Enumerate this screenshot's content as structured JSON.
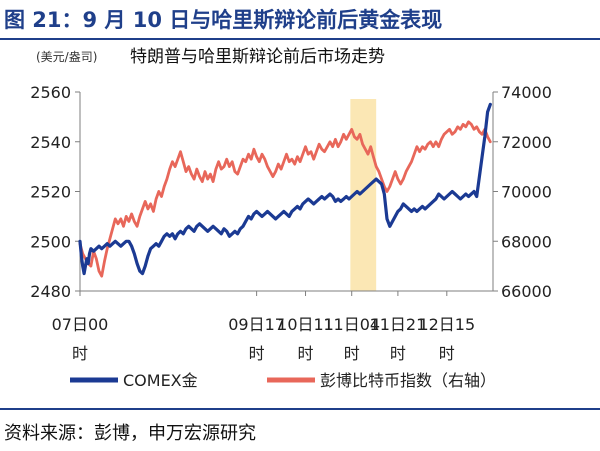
{
  "header": {
    "title": "图 21：9 月 10 日与哈里斯辩论前后黄金表现"
  },
  "source": {
    "text": "资料来源：彭博，申万宏源研究"
  },
  "colors": {
    "gold": "#1b3a93",
    "bitcoin": "#e8675a",
    "highlight": "#fbe7b4",
    "axis": "#7f7f7f",
    "heading": "#1f3f8a"
  },
  "chart_data": {
    "type": "line",
    "title": "特朗普与哈里斯辩论前后市场走势",
    "unit_label": "(美元/盎司)",
    "x_ticks": [
      {
        "label": "07日00",
        "label2": "时",
        "t": 0
      },
      {
        "label": "09日17",
        "label2": "时",
        "t": 65
      },
      {
        "label": "10日11",
        "label2": "时",
        "t": 83
      },
      {
        "label": "11日04",
        "label2": "时",
        "t": 100
      },
      {
        "label": "11日21",
        "label2": "时",
        "t": 117
      },
      {
        "label": "12日15",
        "label2": "时",
        "t": 135
      }
    ],
    "x_range": [
      0,
      152
    ],
    "highlight_range": [
      99.5,
      109
    ],
    "y_left": {
      "min": 2480,
      "max": 2560,
      "ticks": [
        2480,
        2500,
        2520,
        2540,
        2560
      ]
    },
    "y_right": {
      "min": 66000,
      "max": 74000,
      "ticks": [
        66000,
        68000,
        70000,
        72000,
        74000
      ]
    },
    "series": [
      {
        "name": "COMEX金",
        "axis": "left",
        "x": [
          0,
          0.5,
          1,
          1.5,
          2,
          2.5,
          3,
          3.5,
          4,
          5,
          6,
          7,
          8,
          9,
          10,
          11,
          12,
          13,
          14,
          15,
          16,
          17,
          18,
          19,
          20,
          21,
          22,
          23,
          24,
          25,
          26,
          27,
          28,
          29,
          30,
          31,
          32,
          33,
          34,
          35,
          36,
          37,
          38,
          39,
          40,
          41,
          42,
          43,
          44,
          45,
          46,
          47,
          48,
          49,
          50,
          51,
          52,
          53,
          54,
          55,
          56,
          57,
          58,
          59,
          60,
          61,
          62,
          63,
          64,
          65,
          66,
          67,
          68,
          69,
          70,
          71,
          72,
          73,
          74,
          75,
          76,
          77,
          78,
          79,
          80,
          81,
          82,
          83,
          84,
          85,
          86,
          87,
          88,
          89,
          90,
          91,
          92,
          93,
          94,
          95,
          96,
          97,
          98,
          99,
          100,
          101,
          102,
          103,
          104,
          105,
          106,
          107,
          108,
          109,
          110,
          111,
          112,
          113,
          114,
          115,
          116,
          117,
          118,
          119,
          120,
          121,
          122,
          123,
          124,
          125,
          126,
          127,
          128,
          129,
          130,
          131,
          132,
          133,
          134,
          135,
          136,
          137,
          138,
          139,
          140,
          141,
          142,
          143,
          144,
          145,
          146,
          147,
          148,
          149,
          150,
          151
        ],
        "values": [
          2500,
          2494,
          2490,
          2487,
          2490,
          2493,
          2491,
          2495,
          2497,
          2496,
          2497,
          2498,
          2497,
          2498,
          2499,
          2498,
          2499,
          2500,
          2499,
          2498,
          2499,
          2500,
          2500,
          2498,
          2495,
          2491,
          2488,
          2487,
          2490,
          2494,
          2497,
          2498,
          2499,
          2498,
          2500,
          2502,
          2503,
          2502,
          2503,
          2501,
          2503,
          2504,
          2503,
          2505,
          2506,
          2505,
          2504,
          2506,
          2507,
          2506,
          2505,
          2504,
          2505,
          2506,
          2505,
          2504,
          2503,
          2505,
          2504,
          2502,
          2503,
          2504,
          2503,
          2505,
          2506,
          2508,
          2510,
          2509,
          2511,
          2512,
          2511,
          2510,
          2511,
          2512,
          2511,
          2510,
          2509,
          2510,
          2511,
          2512,
          2511,
          2510,
          2512,
          2513,
          2514,
          2513,
          2515,
          2516,
          2517,
          2516,
          2515,
          2516,
          2517,
          2518,
          2517,
          2518,
          2519,
          2518,
          2516,
          2517,
          2516,
          2517,
          2518,
          2517,
          2518,
          2519,
          2520,
          2519,
          2520,
          2521,
          2522,
          2523,
          2524,
          2525,
          2524,
          2523,
          2519,
          2509,
          2506,
          2508,
          2510,
          2512,
          2513,
          2515,
          2514,
          2513,
          2512,
          2513,
          2512,
          2513,
          2514,
          2513,
          2514,
          2515,
          2516,
          2517,
          2519,
          2518,
          2517,
          2518,
          2519,
          2520,
          2519,
          2518,
          2517,
          2518,
          2519,
          2518,
          2519,
          2520,
          2518,
          2526,
          2534,
          2542,
          2552,
          2555
        ]
      },
      {
        "name": "彭博比特币指数（右轴）",
        "axis": "right",
        "x": [
          0,
          1,
          2,
          3,
          4,
          5,
          6,
          7,
          8,
          9,
          10,
          11,
          12,
          13,
          14,
          15,
          16,
          17,
          18,
          19,
          20,
          21,
          22,
          23,
          24,
          25,
          26,
          27,
          28,
          29,
          30,
          31,
          32,
          33,
          34,
          35,
          36,
          37,
          38,
          39,
          40,
          41,
          42,
          43,
          44,
          45,
          46,
          47,
          48,
          49,
          50,
          51,
          52,
          53,
          54,
          55,
          56,
          57,
          58,
          59,
          60,
          61,
          62,
          63,
          64,
          65,
          66,
          67,
          68,
          69,
          70,
          71,
          72,
          73,
          74,
          75,
          76,
          77,
          78,
          79,
          80,
          81,
          82,
          83,
          84,
          85,
          86,
          87,
          88,
          89,
          90,
          91,
          92,
          93,
          94,
          95,
          96,
          97,
          98,
          99,
          100,
          101,
          102,
          103,
          104,
          105,
          106,
          107,
          108,
          109,
          110,
          111,
          112,
          113,
          114,
          115,
          116,
          117,
          118,
          119,
          120,
          121,
          122,
          123,
          124,
          125,
          126,
          127,
          128,
          129,
          130,
          131,
          132,
          133,
          134,
          135,
          136,
          137,
          138,
          139,
          140,
          141,
          142,
          143,
          144,
          145,
          146,
          147,
          148,
          149,
          150,
          151
        ],
        "values": [
          67900,
          67500,
          67300,
          67100,
          67000,
          67600,
          67300,
          66800,
          66600,
          67200,
          67700,
          68100,
          68500,
          68900,
          68700,
          68900,
          68600,
          69000,
          68800,
          69100,
          68800,
          68600,
          69000,
          69300,
          69600,
          69300,
          69500,
          69200,
          69700,
          70000,
          69800,
          70200,
          70500,
          70900,
          71200,
          71000,
          71300,
          71600,
          71200,
          70800,
          71000,
          70700,
          70500,
          70900,
          70600,
          70400,
          70800,
          70500,
          70700,
          70400,
          70900,
          71200,
          70900,
          71000,
          71300,
          71000,
          71200,
          70800,
          70700,
          71000,
          71300,
          71200,
          71500,
          71300,
          71700,
          71400,
          71200,
          71500,
          71300,
          71000,
          70800,
          70600,
          70800,
          71100,
          70900,
          71200,
          71500,
          71200,
          71300,
          71100,
          71400,
          71200,
          71500,
          71800,
          71500,
          71600,
          71300,
          71600,
          71900,
          71700,
          71600,
          71800,
          72000,
          71800,
          72100,
          71800,
          72000,
          72300,
          72100,
          72300,
          72500,
          72200,
          72100,
          72300,
          71900,
          71700,
          71500,
          71800,
          71400,
          71000,
          70800,
          70500,
          70200,
          70000,
          70200,
          70500,
          70800,
          70500,
          70300,
          70500,
          70800,
          71000,
          71200,
          71500,
          71800,
          71600,
          71800,
          71700,
          71900,
          72000,
          71800,
          72000,
          71800,
          72100,
          72300,
          72400,
          72500,
          72300,
          72400,
          72600,
          72500,
          72700,
          72600,
          72800,
          72700,
          72500,
          72600,
          72400,
          72300,
          72500,
          72200,
          72000
        ]
      }
    ],
    "legend_position": "bottom"
  }
}
